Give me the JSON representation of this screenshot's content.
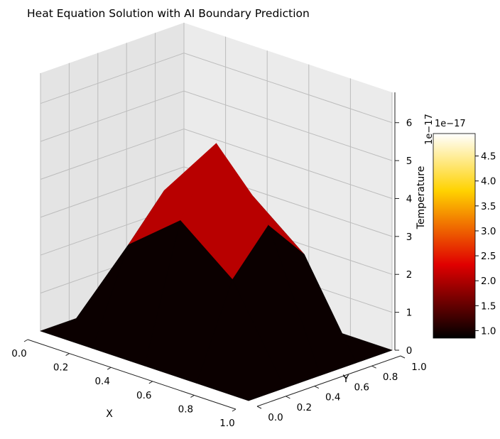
{
  "chart_data": {
    "type": "surface3d",
    "title": "Heat Equation Solution with AI Boundary Prediction",
    "xlabel": "X",
    "ylabel": "Y",
    "zlabel": "",
    "x": [
      0.0,
      0.25,
      0.5,
      0.75,
      1.0
    ],
    "y": [
      0.0,
      0.25,
      0.5,
      0.75,
      1.0
    ],
    "z": [
      [
        0.0,
        0.0,
        0.0,
        0.0,
        0.0
      ],
      [
        0.0,
        2.4,
        3.5,
        2.4,
        0.0
      ],
      [
        0.0,
        3.5,
        5.2,
        3.5,
        0.0
      ],
      [
        0.0,
        2.4,
        3.5,
        2.4,
        0.0
      ],
      [
        0.0,
        0.0,
        0.0,
        0.0,
        0.0
      ]
    ],
    "x_ticks": [
      "0.0",
      "0.2",
      "0.4",
      "0.6",
      "0.8",
      "1.0"
    ],
    "y_ticks": [
      "0.0",
      "0.2",
      "0.4",
      "0.6",
      "0.8",
      "1.0"
    ],
    "z_ticks": [
      "0",
      "1",
      "2",
      "3",
      "4",
      "5",
      "6"
    ],
    "z_offset_label": "1e−17",
    "xlim": [
      0,
      1
    ],
    "ylim": [
      0,
      1
    ],
    "zlim": [
      0,
      6.8
    ],
    "grid": true,
    "colormap": "hot",
    "colorbar": {
      "label": "Temperature",
      "offset_label": "1e−17",
      "ticks": [
        "1.0",
        "1.5",
        "2.0",
        "2.5",
        "3.0",
        "3.5",
        "4.0",
        "4.5"
      ],
      "tick_values": [
        1.0,
        1.5,
        2.0,
        2.5,
        3.0,
        3.5,
        4.0,
        4.5
      ],
      "range": [
        0.85,
        4.95
      ]
    },
    "colors": {
      "low": "#0b0000",
      "mid": "#b80000",
      "high": "#ffffff",
      "pane": "#ebebeb",
      "grid": "#bcbcbc"
    }
  }
}
